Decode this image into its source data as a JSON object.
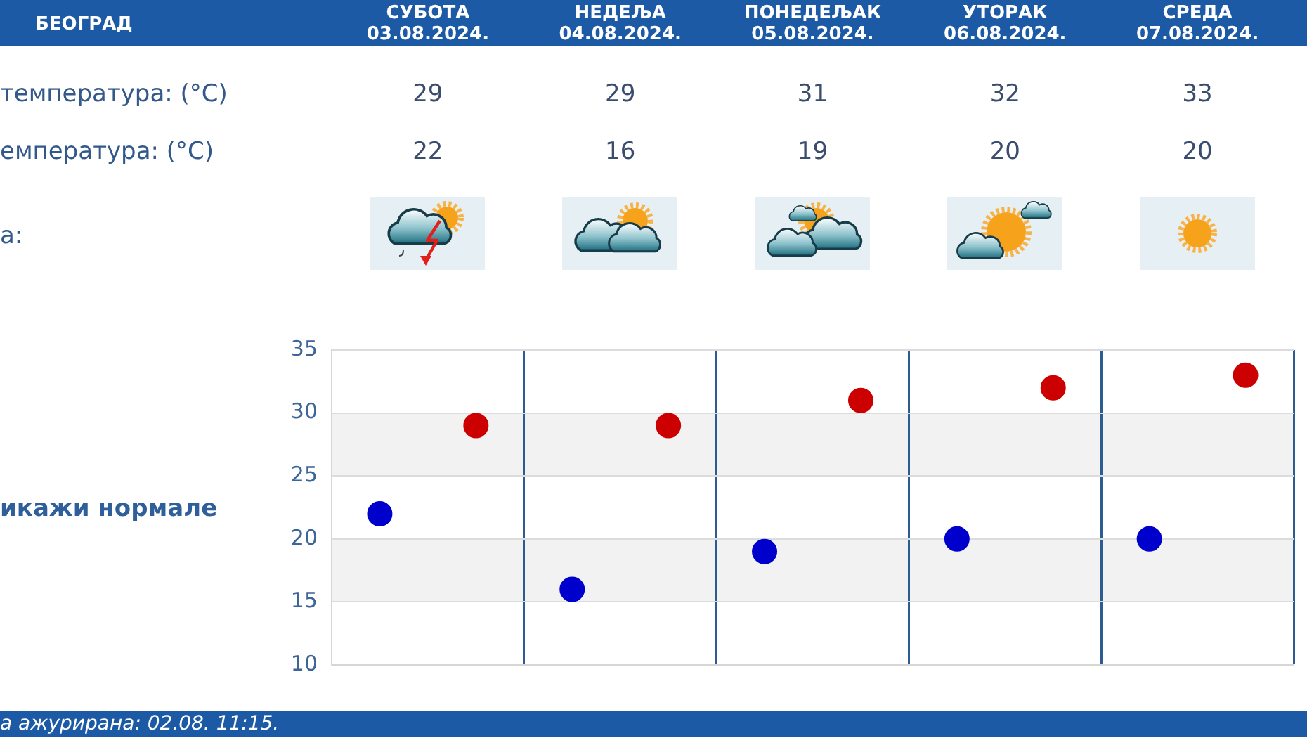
{
  "chart_data": {
    "type": "scatter",
    "title": "БЕОГРАД",
    "categories": [
      null,
      null,
      null,
      null,
      null
    ],
    "series": [
      {
        "color": "#cc0000",
        "values": [
          29,
          29,
          31,
          32,
          33
        ]
      },
      {
        "color": "#0000cc",
        "values": [
          22,
          16,
          19,
          20,
          20
        ]
      }
    ],
    "ylim": [
      10,
      35
    ],
    "yticks": [
      10,
      15,
      20,
      25,
      30,
      35
    ],
    "grid": true,
    "marker": "circle",
    "data_labels": true,
    "bands": [
      {
        "axis": "y",
        "from": 15,
        "to": 20,
        "color": "#f2f2f2"
      },
      {
        "axis": "y",
        "from": 25,
        "to": 30,
        "color": "#f2f2f2"
      }
    ],
    "annotations": [
      "СУБОТА\n03.08.2024.",
      "НЕДЕЉА\n04.08.2024.",
      "ПОНЕДЕЉАК\n05.08.2024.",
      "УТОРАК\n06.08.2024.",
      "СРЕДА\n07.08.2024.",
      "температура: (°C)",
      "емпература: (°C)",
      "а:",
      "икажи нормале",
      "а ажурирана: 02.08. 11:15."
    ]
  }
}
